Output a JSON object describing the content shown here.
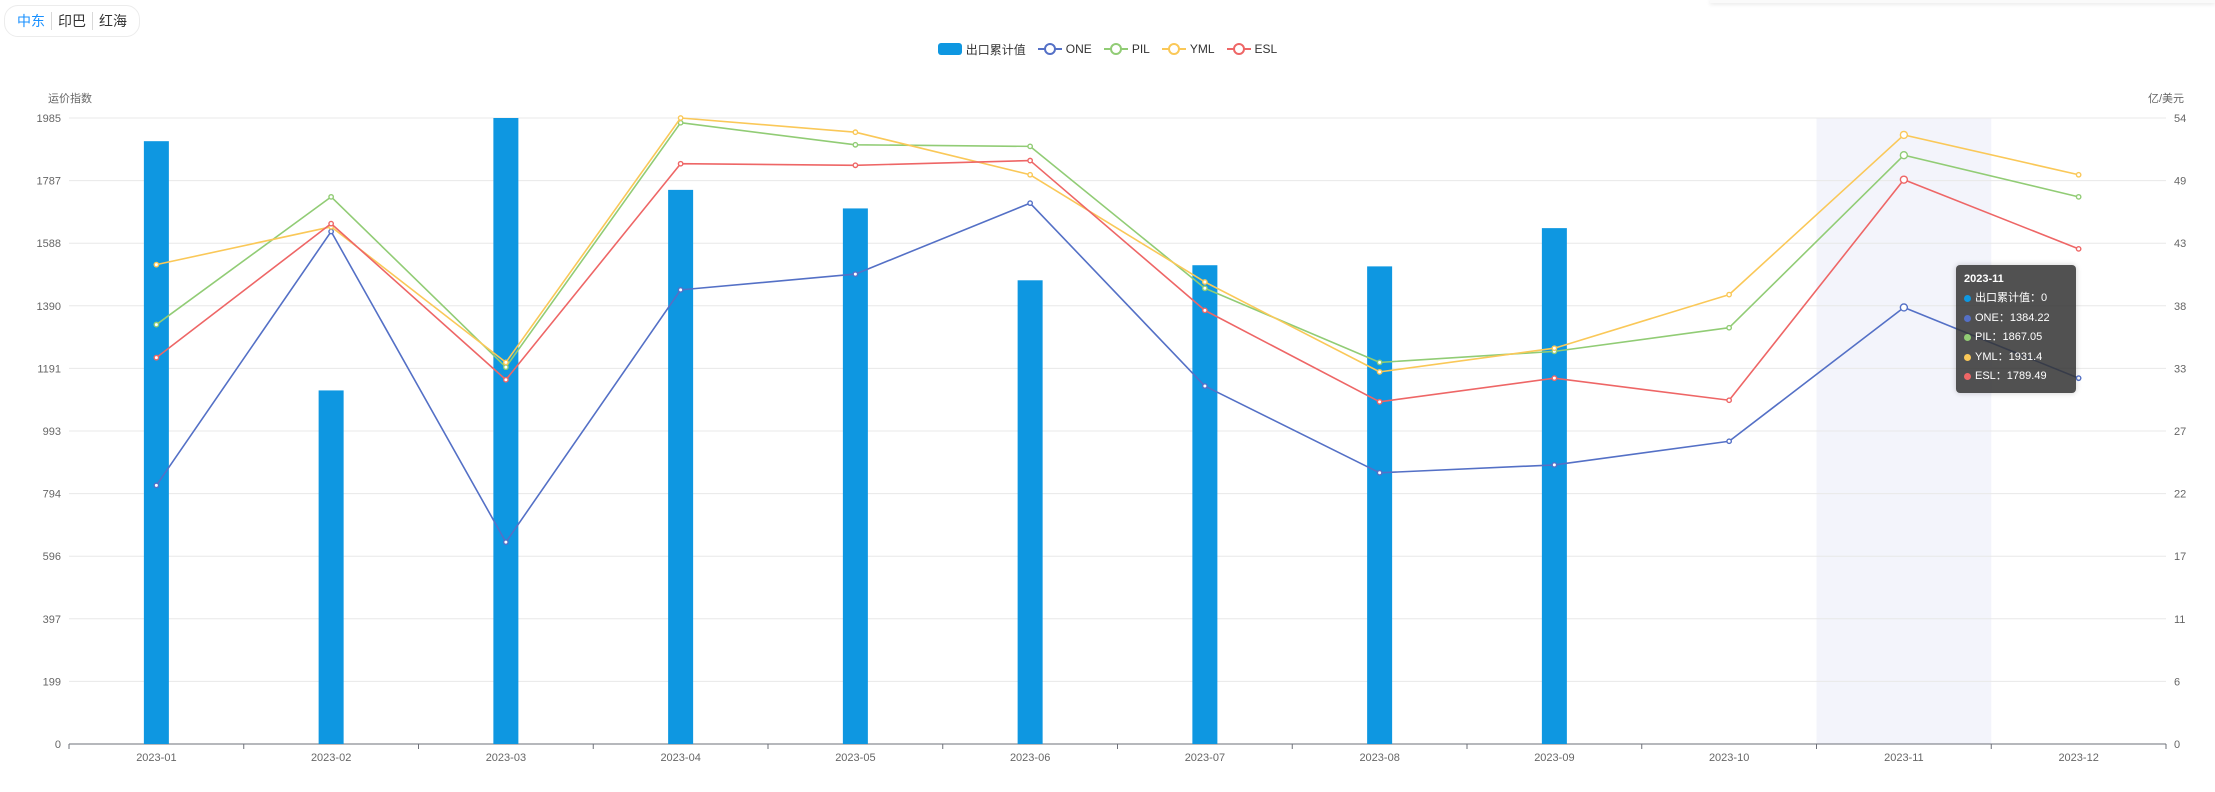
{
  "tabs": [
    {
      "label": "中东",
      "active": true
    },
    {
      "label": "印巴",
      "active": false
    },
    {
      "label": "红海",
      "active": false
    }
  ],
  "legend": [
    {
      "name": "出口累计值",
      "kind": "bar",
      "color": "#0e97e1"
    },
    {
      "name": "ONE",
      "kind": "line",
      "color": "#5470c6"
    },
    {
      "name": "PIL",
      "kind": "line",
      "color": "#91cc75"
    },
    {
      "name": "YML",
      "kind": "line",
      "color": "#fac858"
    },
    {
      "name": "ESL",
      "kind": "line",
      "color": "#ee6666"
    }
  ],
  "chart_data": {
    "type": "bar",
    "categories": [
      "2023-01",
      "2023-02",
      "2023-03",
      "2023-04",
      "2023-05",
      "2023-06",
      "2023-07",
      "2023-08",
      "2023-09",
      "2023-10",
      "2023-11",
      "2023-12"
    ],
    "ylabel_left": "运价指数",
    "ylabel_right": "亿/美元",
    "y_left_ticks": [
      "0",
      "199",
      "397",
      "596",
      "794",
      "993",
      "1191",
      "1390",
      "1588",
      "1787",
      "1985"
    ],
    "y_right_ticks": [
      "0",
      "6",
      "11",
      "17",
      "22",
      "27",
      "33",
      "38",
      "43",
      "49",
      "54"
    ],
    "y_left_range": [
      0,
      1985
    ],
    "y_right_range": [
      0,
      54
    ],
    "bar_series": {
      "name": "出口累计值",
      "axis": "right",
      "color": "#0e97e1",
      "values": [
        52,
        30.5,
        54,
        47.8,
        46.2,
        40,
        41.3,
        41.2,
        44.5,
        0,
        0,
        0
      ]
    },
    "line_series": [
      {
        "name": "ONE",
        "axis": "left",
        "color": "#5470c6",
        "values": [
          820,
          1625,
          640,
          1440,
          1490,
          1715,
          1135,
          860,
          885,
          960,
          1384.22,
          1160
        ]
      },
      {
        "name": "PIL",
        "axis": "left",
        "color": "#91cc75",
        "values": [
          1330,
          1735,
          1195,
          1970,
          1900,
          1895,
          1445,
          1210,
          1245,
          1320,
          1867.05,
          1735
        ]
      },
      {
        "name": "YML",
        "axis": "left",
        "color": "#fac858",
        "values": [
          1520,
          1640,
          1210,
          1985,
          1940,
          1805,
          1465,
          1180,
          1255,
          1425,
          1931.4,
          1805
        ]
      },
      {
        "name": "ESL",
        "axis": "left",
        "color": "#ee6666",
        "values": [
          1225,
          1650,
          1155,
          1840,
          1835,
          1850,
          1375,
          1085,
          1160,
          1090,
          1789.49,
          1570
        ]
      }
    ],
    "highlight_category": "2023-11"
  },
  "tooltip": {
    "title": "2023-11",
    "rows": [
      {
        "label": "出口累计值",
        "value": "0",
        "color": "#0e97e1"
      },
      {
        "label": "ONE",
        "value": "1384.22",
        "color": "#5470c6"
      },
      {
        "label": "PIL",
        "value": "1867.05",
        "color": "#91cc75"
      },
      {
        "label": "YML",
        "value": "1931.4",
        "color": "#fac858"
      },
      {
        "label": "ESL",
        "value": "1789.49",
        "color": "#ee6666"
      }
    ]
  }
}
